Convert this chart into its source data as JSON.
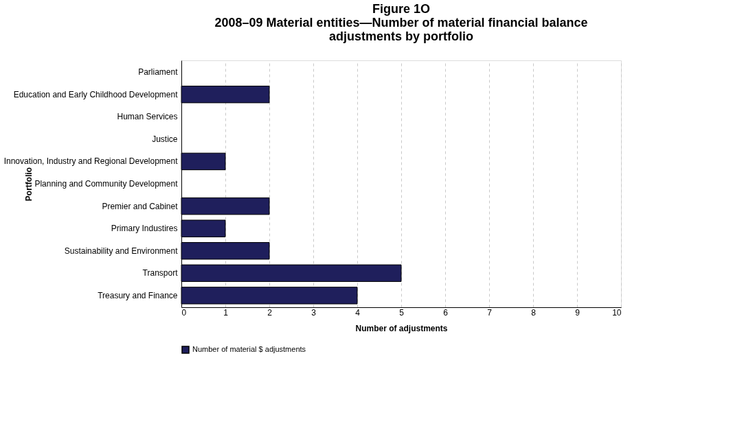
{
  "chart_data": {
    "type": "bar",
    "orientation": "horizontal",
    "title": "Figure 1O",
    "subtitle": "2008–09 Material entities—Number of material financial balance adjustments by portfolio",
    "xlabel": "Number of adjustments",
    "ylabel": "Portfolio",
    "categories": [
      "Parliament",
      "Education and Early Childhood Development",
      "Human Services",
      "Justice",
      "Innovation, Industry and Regional Development",
      "Planning and Community Development",
      "Premier and Cabinet",
      "Primary Industires",
      "Sustainability and Environment",
      "Transport",
      "Treasury and Finance"
    ],
    "series": [
      {
        "name": "Number of material $ adjustments",
        "color": "#1f1f5c",
        "values": [
          0,
          2,
          0,
          0,
          1,
          0,
          2,
          1,
          2,
          5,
          4
        ]
      }
    ],
    "xlim": [
      0,
      10
    ],
    "xticks": [
      0,
      1,
      2,
      3,
      4,
      5,
      6,
      7,
      8,
      9,
      10
    ],
    "grid": "x",
    "legend": "bottom"
  }
}
